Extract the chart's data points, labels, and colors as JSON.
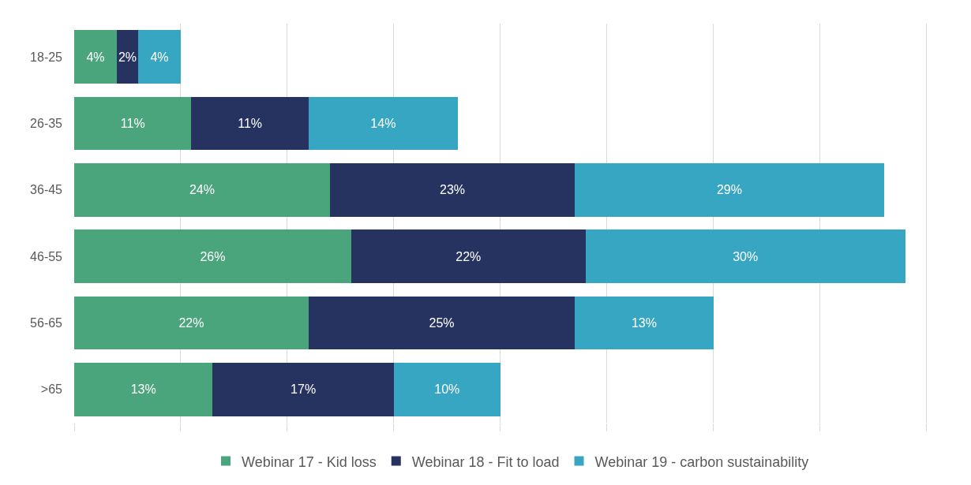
{
  "chart_data": {
    "type": "bar",
    "orientation": "horizontal",
    "stacked": true,
    "grid": "x",
    "legend": "bottom",
    "tick_labels": "y",
    "categories": [
      "18-25",
      "26-35",
      "36-45",
      "46-55",
      "56-65",
      ">65"
    ],
    "series": [
      {
        "name": "Webinar 17 - Kid loss",
        "color": "#4aa57c",
        "values": [
          4,
          11,
          24,
          26,
          22,
          13
        ],
        "value_labels": [
          "4%",
          "11%",
          "24%",
          "26%",
          "22%",
          "13%"
        ]
      },
      {
        "name": "Webinar 18 - Fit to load",
        "color": "#263360",
        "values": [
          2,
          11,
          23,
          22,
          25,
          17
        ],
        "value_labels": [
          "2%",
          "11%",
          "23%",
          "22%",
          "25%",
          "17%"
        ]
      },
      {
        "name": "Webinar 19 - carbon sustainability",
        "color": "#37a6c2",
        "values": [
          4,
          14,
          29,
          30,
          13,
          10
        ],
        "value_labels": [
          "4%",
          "14%",
          "29%",
          "30%",
          "13%",
          "10%"
        ]
      }
    ]
  }
}
